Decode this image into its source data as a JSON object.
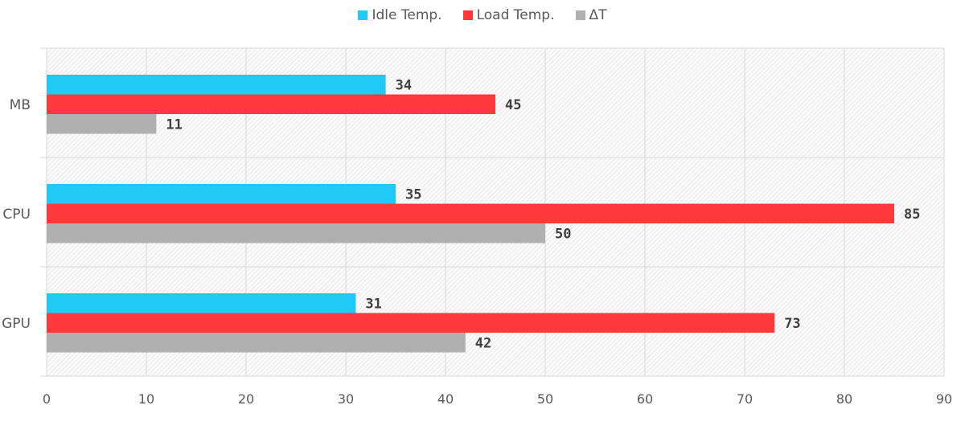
{
  "chart_data": {
    "type": "bar",
    "orientation": "horizontal",
    "categories": [
      "MB",
      "CPU",
      "GPU"
    ],
    "series": [
      {
        "name": "Idle Temp.",
        "color": "#22c8f6",
        "values": [
          34,
          35,
          31
        ]
      },
      {
        "name": "Load Temp.",
        "color": "#ff383c",
        "values": [
          45,
          85,
          73
        ]
      },
      {
        "name": "ΔT",
        "color": "#b0b0b0",
        "values": [
          11,
          50,
          42
        ]
      }
    ],
    "xticks": [
      0,
      10,
      20,
      30,
      40,
      50,
      60,
      70,
      80,
      90
    ],
    "xlim": [
      0,
      90
    ],
    "title": "",
    "xlabel": "",
    "ylabel": "",
    "legend": "top",
    "grid": true
  }
}
